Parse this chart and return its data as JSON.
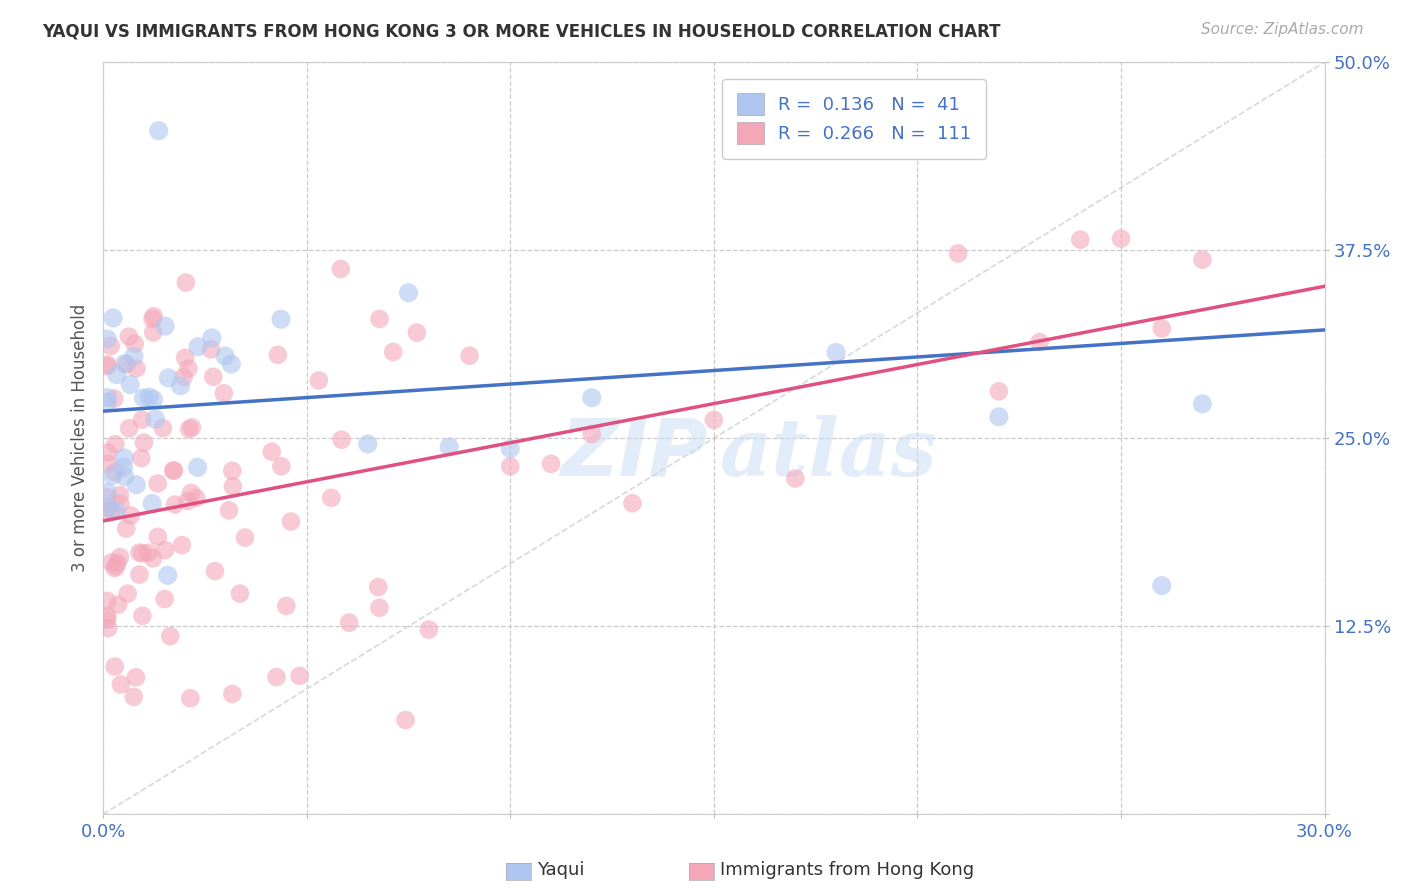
{
  "title": "YAQUI VS IMMIGRANTS FROM HONG KONG 3 OR MORE VEHICLES IN HOUSEHOLD CORRELATION CHART",
  "source_text": "Source: ZipAtlas.com",
  "ylabel": "3 or more Vehicles in Household",
  "xlim": [
    0.0,
    0.3
  ],
  "ylim": [
    0.0,
    0.5
  ],
  "xticks": [
    0.0,
    0.05,
    0.1,
    0.15,
    0.2,
    0.25,
    0.3
  ],
  "yticks": [
    0.0,
    0.125,
    0.25,
    0.375,
    0.5
  ],
  "color_yaqui": "#aec6f0",
  "color_hk": "#f4a7b9",
  "line_color_yaqui": "#4472c4",
  "line_color_hk": "#e05080",
  "diag_line_color": "#c8c8c8",
  "watermark_zip": "ZIP",
  "watermark_atlas": "atlas",
  "legend_label1": "R =  0.136   N =  41",
  "legend_label2": "R =  0.266   N =  111",
  "yaqui_slope": 0.18,
  "yaqui_intercept": 0.268,
  "hk_slope": 0.52,
  "hk_intercept": 0.195
}
